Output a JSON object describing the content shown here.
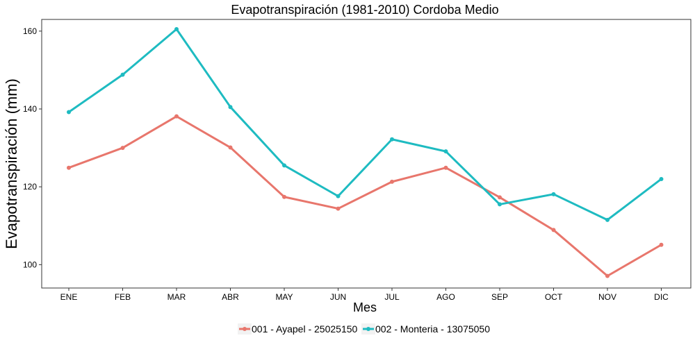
{
  "chart_data": {
    "type": "line",
    "title": "Evapotranspiración (1981-2010)  Cordoba Medio",
    "xlabel": "Mes",
    "ylabel": "Evapotranspiración  (mm)",
    "categories": [
      "ENE",
      "FEB",
      "MAR",
      "ABR",
      "MAY",
      "JUN",
      "JUL",
      "AGO",
      "SEP",
      "OCT",
      "NOV",
      "DIC"
    ],
    "ylim": [
      94,
      163
    ],
    "yticks": [
      100,
      120,
      140,
      160
    ],
    "grid": false,
    "legend_position": "bottom",
    "series": [
      {
        "name": "001 - Ayapel - 25025150",
        "color": "#E8766C",
        "values": [
          124.9,
          130.0,
          138.1,
          130.1,
          117.4,
          114.4,
          121.3,
          124.9,
          117.3,
          108.9,
          97.1,
          105.1
        ]
      },
      {
        "name": "002 - Monteria - 13075050",
        "color": "#1EBBC1",
        "values": [
          139.2,
          148.8,
          160.5,
          140.5,
          125.5,
          117.6,
          132.2,
          129.1,
          115.5,
          118.1,
          111.5,
          122.0
        ]
      }
    ]
  }
}
